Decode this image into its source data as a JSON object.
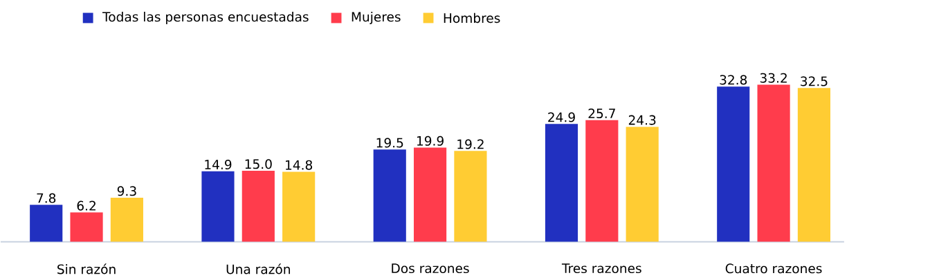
{
  "chart_data": {
    "type": "bar",
    "categories": [
      "Sin razón",
      "Una razón",
      "Dos razones",
      "Tres razones",
      "Cuatro razones"
    ],
    "series": [
      {
        "name": "Todas las personas encuestadas",
        "color": "#2130c0",
        "values": [
          7.8,
          14.9,
          19.5,
          24.9,
          32.8
        ],
        "value_labels": [
          "7.8",
          "14.9",
          "19.5",
          "24.9",
          "32.8"
        ]
      },
      {
        "name": "Mujeres",
        "color": "#ff3c4c",
        "values": [
          6.2,
          15.0,
          19.9,
          25.7,
          33.2
        ],
        "value_labels": [
          "6.2",
          "15.0",
          "19.9",
          "25.7",
          "33.2"
        ]
      },
      {
        "name": "Hombres",
        "color": "#ffcc33",
        "values": [
          9.3,
          14.8,
          19.2,
          24.3,
          32.5
        ],
        "value_labels": [
          "9.3",
          "14.8",
          "19.2",
          "24.3",
          "32.5"
        ]
      }
    ],
    "legend": "top left"
  }
}
